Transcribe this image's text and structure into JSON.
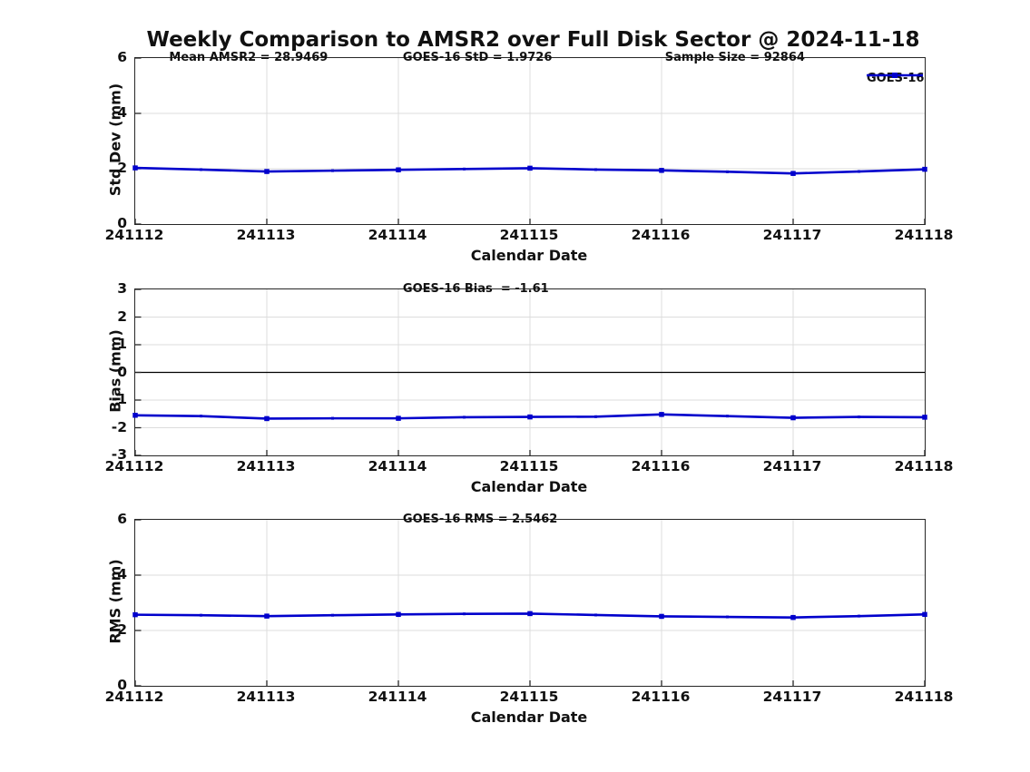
{
  "title": "Weekly Comparison to AMSR2 over Full Disk Sector @ 2024-11-18",
  "legend": {
    "label": "GOES-16"
  },
  "colors": {
    "line": "#0000CC",
    "grid": "#dcdcdc",
    "axis": "#262626",
    "zero_line": "#000000",
    "text": "#111111",
    "background": "#ffffff"
  },
  "chart_data": [
    {
      "type": "line",
      "name": "std-dev",
      "annotations": [
        "Mean AMSR2 = 28.9469",
        "GOES-16 StD = 1.9726",
        "Sample Size = 92864"
      ],
      "ylabel": "Std Dev (mm)",
      "xlabel": "Calendar Date",
      "ylim": [
        0,
        6
      ],
      "yticks": [
        0,
        2,
        4,
        6
      ],
      "categories": [
        "241112",
        "241113",
        "241114",
        "241115",
        "241116",
        "241117",
        "241118"
      ],
      "x_days_offset": [
        0,
        0.5,
        1,
        1.5,
        2,
        2.5,
        3,
        3.5,
        4,
        4.5,
        5,
        5.5,
        6
      ],
      "series": [
        {
          "name": "GOES-16",
          "values": [
            2.03,
            1.97,
            1.9,
            1.93,
            1.96,
            1.99,
            2.02,
            1.97,
            1.94,
            1.89,
            1.83,
            1.9,
            1.98
          ]
        }
      ],
      "zero_line": false,
      "grid": true,
      "legend_position": "top-right-outside"
    },
    {
      "type": "line",
      "name": "bias",
      "annotations": [
        "GOES-16 Bias  = -1.61"
      ],
      "ylabel": "Bias (mm)",
      "xlabel": "Calendar Date",
      "ylim": [
        -3,
        3
      ],
      "yticks": [
        -3,
        -2,
        -1,
        0,
        1,
        2,
        3
      ],
      "categories": [
        "241112",
        "241113",
        "241114",
        "241115",
        "241116",
        "241117",
        "241118"
      ],
      "x_days_offset": [
        0,
        0.5,
        1,
        1.5,
        2,
        2.5,
        3,
        3.5,
        4,
        4.5,
        5,
        5.5,
        6
      ],
      "series": [
        {
          "name": "GOES-16",
          "values": [
            -1.55,
            -1.58,
            -1.67,
            -1.66,
            -1.66,
            -1.62,
            -1.61,
            -1.6,
            -1.52,
            -1.58,
            -1.64,
            -1.61,
            -1.62
          ]
        }
      ],
      "zero_line": true,
      "grid": true
    },
    {
      "type": "line",
      "name": "rms",
      "annotations": [
        "GOES-16 RMS = 2.5462"
      ],
      "ylabel": "RMS (mm)",
      "xlabel": "Calendar Date",
      "ylim": [
        0,
        6
      ],
      "yticks": [
        0,
        2,
        4,
        6
      ],
      "categories": [
        "241112",
        "241113",
        "241114",
        "241115",
        "241116",
        "241117",
        "241118"
      ],
      "x_days_offset": [
        0,
        0.5,
        1,
        1.5,
        2,
        2.5,
        3,
        3.5,
        4,
        4.5,
        5,
        5.5,
        6
      ],
      "series": [
        {
          "name": "GOES-16",
          "values": [
            2.57,
            2.55,
            2.52,
            2.55,
            2.58,
            2.6,
            2.61,
            2.56,
            2.51,
            2.49,
            2.47,
            2.52,
            2.58
          ]
        }
      ],
      "zero_line": false,
      "grid": true
    }
  ]
}
